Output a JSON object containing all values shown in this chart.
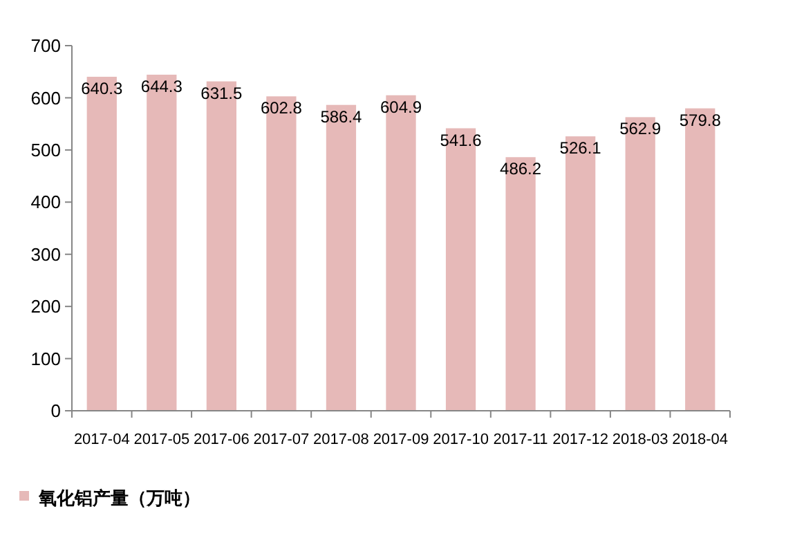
{
  "chart_data": {
    "type": "bar",
    "categories": [
      "2017-04",
      "2017-05",
      "2017-06",
      "2017-07",
      "2017-08",
      "2017-09",
      "2017-10",
      "2017-11",
      "2017-12",
      "2018-03",
      "2018-04"
    ],
    "series": [
      {
        "name": "氧化铝产量（万吨）",
        "color": "#e6b9b8",
        "values": [
          640.3,
          644.3,
          631.5,
          602.8,
          586.4,
          604.9,
          541.6,
          486.2,
          526.1,
          562.9,
          579.8
        ]
      }
    ],
    "ylim": [
      0,
      700
    ],
    "yticks": [
      0,
      100,
      200,
      300,
      400,
      500,
      600,
      700
    ],
    "data_labels": true,
    "legend": "bottom left"
  }
}
